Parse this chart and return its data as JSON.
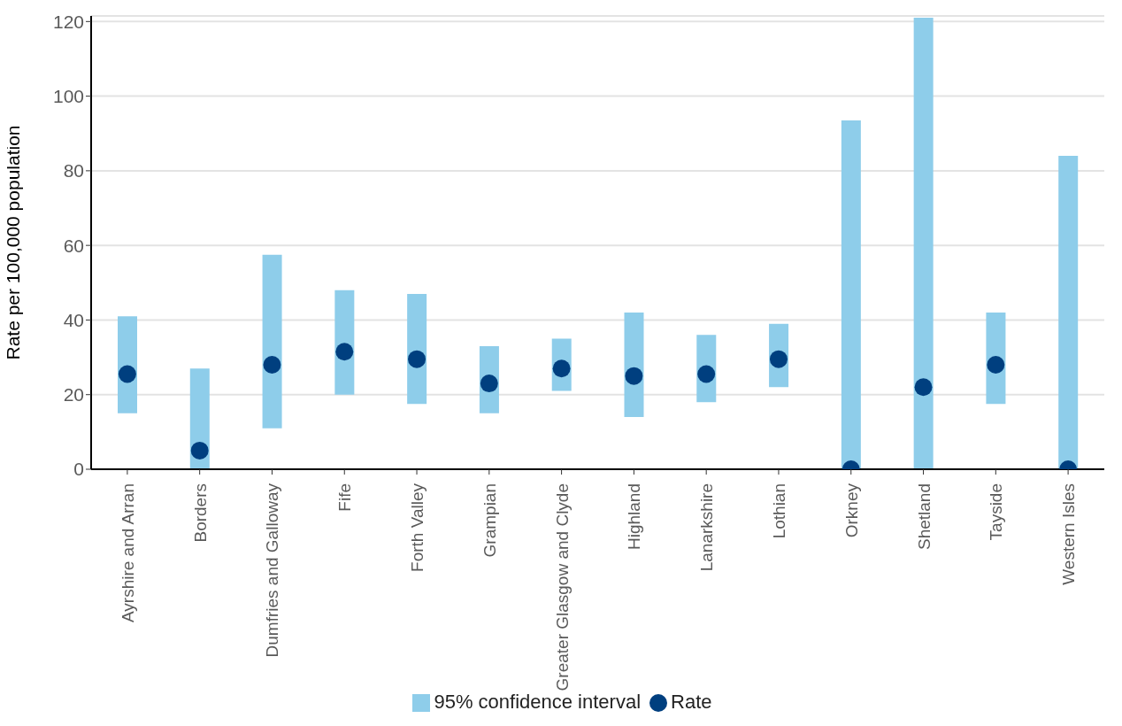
{
  "chart_data": {
    "type": "bar",
    "ylabel": "Rate per 100,000 population",
    "categories": [
      "Ayrshire and Arran",
      "Borders",
      "Dumfries and Galloway",
      "Fife",
      "Forth Valley",
      "Grampian",
      "Greater Glasgow and Clyde",
      "Highland",
      "Lanarkshire",
      "Lothian",
      "Orkney",
      "Shetland",
      "Tayside",
      "Western Isles"
    ],
    "series": [
      {
        "name": "95% confidence interval",
        "color": "#8ecdea",
        "base": [
          15,
          0,
          11,
          20,
          17.5,
          15,
          21,
          14,
          18,
          22,
          0,
          0,
          17.5,
          0
        ],
        "values": [
          26,
          27,
          46.5,
          28,
          29.5,
          18,
          14,
          28,
          18,
          17,
          93.5,
          121,
          24.5,
          84
        ]
      },
      {
        "type": "scatter",
        "name": "Rate",
        "color": "#003f7f",
        "marker": "circle",
        "x": [
          "Ayrshire and Arran",
          "Borders",
          "Dumfries and Galloway",
          "Fife",
          "Forth Valley",
          "Grampian",
          "Greater Glasgow and Clyde",
          "Highland",
          "Lanarkshire",
          "Lothian",
          "Orkney",
          "Shetland",
          "Tayside",
          "Western Isles"
        ],
        "values": [
          25.5,
          5,
          28,
          31.5,
          29.5,
          23,
          27,
          25,
          25.5,
          29.5,
          0,
          22,
          28,
          0
        ]
      }
    ],
    "ylim": [
      0,
      121.5
    ],
    "yticks": [
      0,
      20,
      40,
      60,
      80,
      100,
      120
    ],
    "grid": "y",
    "legend": "bottom"
  }
}
